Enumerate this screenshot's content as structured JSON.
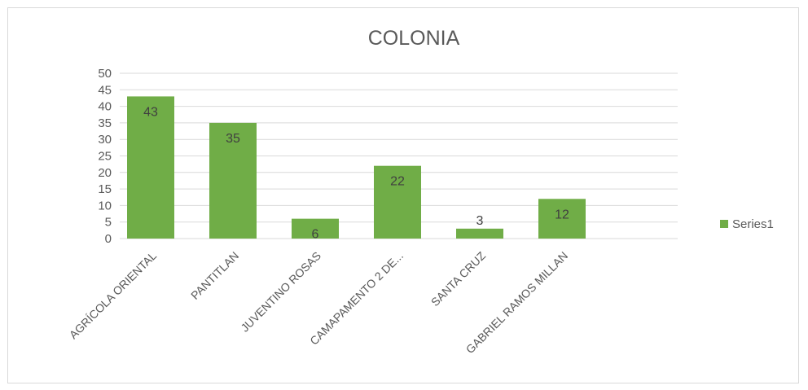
{
  "chart_data": {
    "type": "bar",
    "title": "COLONIA",
    "categories": [
      "AGRÍCOLA ORIENTAL",
      "PANTITLAN",
      "JUVENTINO ROSAS",
      "CAMAPAMENTO 2 DE...",
      "SANTA CRUZ",
      "GABRIEL RAMOS MILLAN"
    ],
    "series": [
      {
        "name": "Series1",
        "values": [
          43,
          35,
          6,
          22,
          3,
          12
        ],
        "color": "#70ad47"
      }
    ],
    "ylim": [
      0,
      50
    ],
    "yticks": [
      "0",
      "5",
      "10",
      "15",
      "20",
      "25",
      "30",
      "35",
      "40",
      "45",
      "50"
    ],
    "grid": true,
    "legend_position": "right",
    "data_labels": true
  }
}
